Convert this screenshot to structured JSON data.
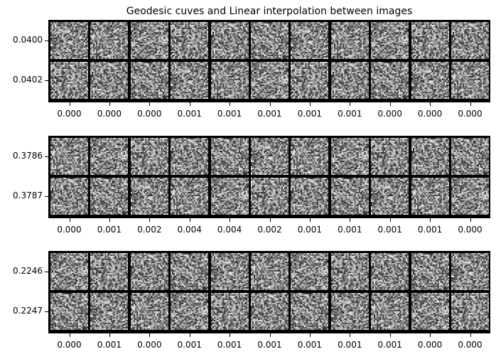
{
  "title": "Geodesic cuves and Linear interpolation between images",
  "chart_data": {
    "type": "image-grid",
    "title": "Geodesic cuves and Linear interpolation between images",
    "grid": false,
    "panels": [
      {
        "name": "",
        "rows": 2,
        "cols": 11,
        "yticks": [
          "0.0400",
          "0.0402"
        ],
        "xticks": [
          "0.000",
          "0.000",
          "0.000",
          "0.001",
          "0.001",
          "0.001",
          "0.001",
          "0.001",
          "0.000",
          "0.000",
          "0.000"
        ],
        "image_style": "grayscale noise"
      },
      {
        "name": "",
        "rows": 2,
        "cols": 11,
        "yticks": [
          "0.3786",
          "0.3787"
        ],
        "xticks": [
          "0.000",
          "0.001",
          "0.002",
          "0.004",
          "0.004",
          "0.002",
          "0.001",
          "0.001",
          "0.001",
          "0.001",
          "0.000"
        ],
        "image_style": "grayscale noise"
      },
      {
        "name": "",
        "rows": 2,
        "cols": 11,
        "yticks": [
          "0.2246",
          "0.2247"
        ],
        "xticks": [
          "0.000",
          "0.001",
          "0.000",
          "0.001",
          "0.001",
          "0.001",
          "0.001",
          "0.001",
          "0.001",
          "0.000",
          "0.000"
        ],
        "image_style": "grayscale noise"
      }
    ]
  },
  "colors": {
    "frame": "#000000",
    "background": "#ffffff",
    "noise_dark": "#3a3a3a",
    "noise_light": "#d8d8d8"
  }
}
